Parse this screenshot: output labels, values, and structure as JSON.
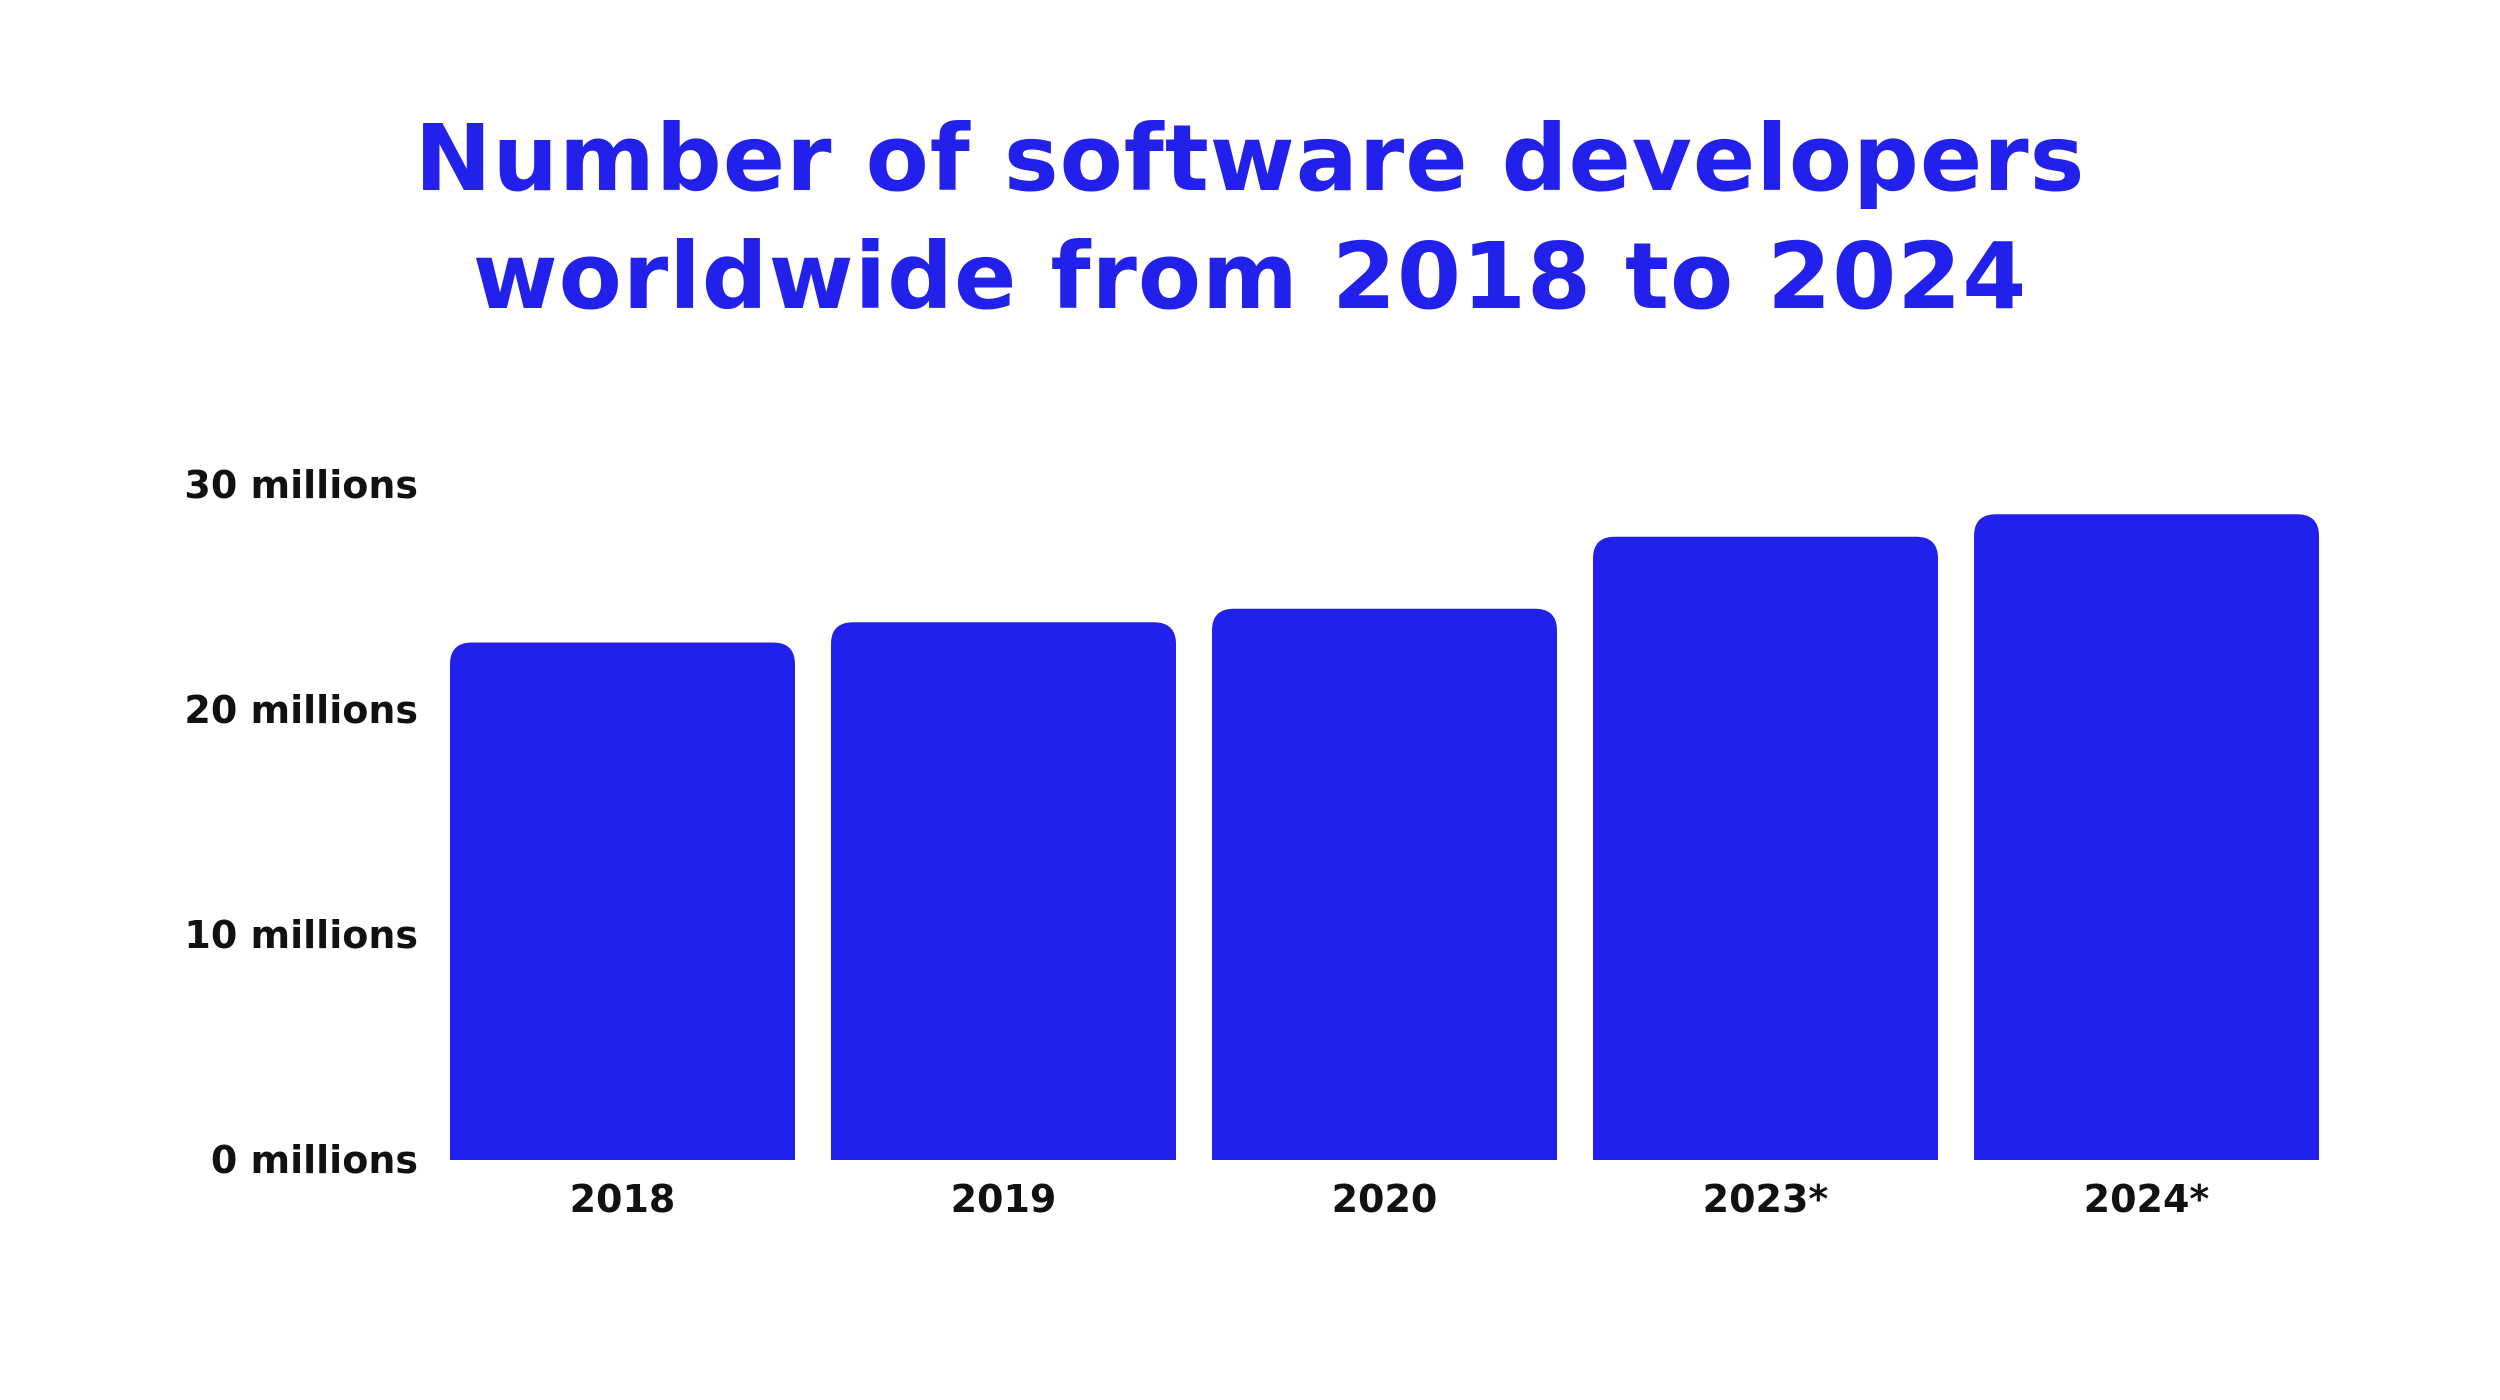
{
  "title_lines": [
    "Number of software developers",
    "worldwide from 2018 to 2024"
  ],
  "colors": {
    "bar": "#2220eb",
    "title": "#2220eb",
    "text": "#111111"
  },
  "chart_data": {
    "type": "bar",
    "title": "Number of software developers worldwide from 2018 to 2024",
    "categories": [
      "2018",
      "2019",
      "2020",
      "2023*",
      "2024*"
    ],
    "values": [
      23,
      23.9,
      24.5,
      27.7,
      28.7
    ],
    "unit": "millions",
    "ylim": [
      0,
      30
    ],
    "yticks": [
      {
        "value": 0,
        "label": "0 millions"
      },
      {
        "value": 10,
        "label": "10 millions"
      },
      {
        "value": 20,
        "label": "20 millions"
      },
      {
        "value": 30,
        "label": "30 millions"
      }
    ],
    "xlabel": "",
    "ylabel": "",
    "grid": false,
    "legend": "none"
  }
}
